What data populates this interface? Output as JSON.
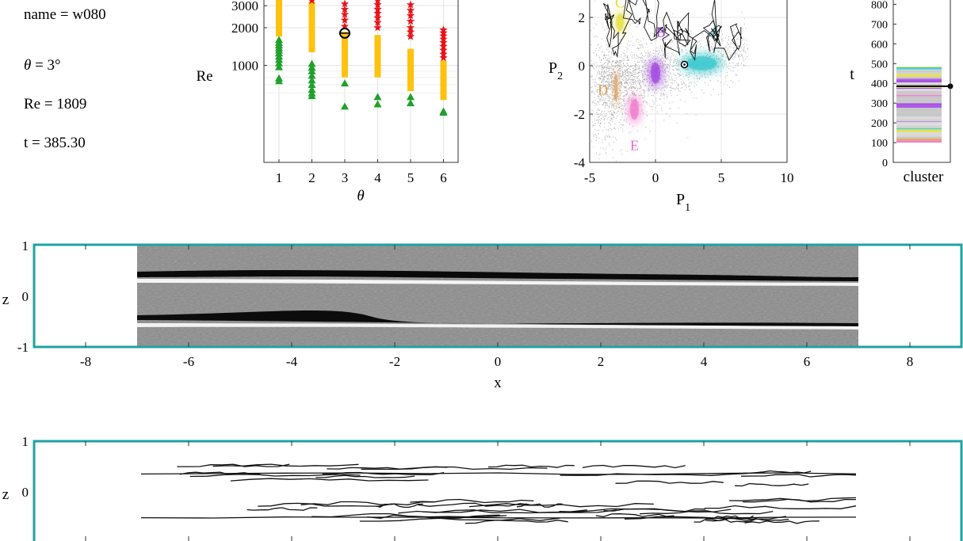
{
  "info": {
    "name": "name = w080",
    "theta_sym": "θ",
    "theta_rest": " = 3°",
    "re": "Re = 1809",
    "t": "t = 385.30"
  },
  "chart_data": [
    {
      "type": "scatter",
      "xlabel": "θ",
      "ylabel": "Re",
      "yscale": "log",
      "xticks": [
        "1",
        "2",
        "3",
        "4",
        "5",
        "6"
      ],
      "yticks": [
        "1000",
        "2000",
        "3000"
      ],
      "xlim": [
        0.5,
        6.5
      ],
      "grid": true,
      "marker_groups": [
        {
          "marker": "triangle",
          "color": "#1fa12a",
          "points": [
            [
              1,
              1600
            ],
            [
              1,
              1520
            ],
            [
              1,
              1450
            ],
            [
              1,
              1380
            ],
            [
              1,
              1320
            ],
            [
              1,
              1250
            ],
            [
              1,
              1180
            ],
            [
              1,
              1110
            ],
            [
              1,
              1040
            ],
            [
              1,
              970
            ],
            [
              1,
              790
            ],
            [
              1,
              750
            ],
            [
              2,
              1030
            ],
            [
              2,
              960
            ],
            [
              2,
              900
            ],
            [
              2,
              830
            ],
            [
              2,
              760
            ],
            [
              2,
              700
            ],
            [
              2,
              640
            ],
            [
              2,
              600
            ],
            [
              2,
              570
            ],
            [
              3,
              720
            ],
            [
              3,
              470
            ],
            [
              4,
              560
            ],
            [
              4,
              490
            ],
            [
              5,
              560
            ],
            [
              5,
              500
            ],
            [
              6,
              430
            ],
            [
              6,
              420
            ]
          ]
        },
        {
          "marker": "square",
          "color": "#ffc20e",
          "points": [
            [
              1,
              1800
            ],
            [
              1,
              1900
            ],
            [
              1,
              2000
            ],
            [
              1,
              2150
            ],
            [
              1,
              2300
            ],
            [
              1,
              2450
            ],
            [
              1,
              2600
            ],
            [
              1,
              2800
            ],
            [
              1,
              3000
            ],
            [
              1,
              3200
            ],
            [
              1,
              3450
            ],
            [
              2,
              1350
            ],
            [
              2,
              1450
            ],
            [
              2,
              1550
            ],
            [
              2,
              1700
            ],
            [
              2,
              1850
            ],
            [
              2,
              2000
            ],
            [
              2,
              2200
            ],
            [
              2,
              2400
            ],
            [
              2,
              2600
            ],
            [
              2,
              2800
            ],
            [
              2,
              3050
            ],
            [
              3,
              850
            ],
            [
              3,
              900
            ],
            [
              3,
              950
            ],
            [
              3,
              1000
            ],
            [
              3,
              1050
            ],
            [
              3,
              1120
            ],
            [
              3,
              1200
            ],
            [
              3,
              1300
            ],
            [
              3,
              1400
            ],
            [
              3,
              1500
            ],
            [
              3,
              1620
            ],
            [
              3,
              1750
            ],
            [
              4,
              850
            ],
            [
              4,
              900
            ],
            [
              4,
              950
            ],
            [
              4,
              1000
            ],
            [
              4,
              1060
            ],
            [
              4,
              1130
            ],
            [
              4,
              1200
            ],
            [
              4,
              1280
            ],
            [
              4,
              1350
            ],
            [
              4,
              1450
            ],
            [
              4,
              1550
            ],
            [
              4,
              1650
            ],
            [
              5,
              660
            ],
            [
              5,
              700
            ],
            [
              5,
              750
            ],
            [
              5,
              800
            ],
            [
              5,
              850
            ],
            [
              5,
              900
            ],
            [
              5,
              950
            ],
            [
              5,
              1000
            ],
            [
              5,
              1060
            ],
            [
              5,
              1130
            ],
            [
              5,
              1200
            ],
            [
              5,
              1280
            ],
            [
              6,
              560
            ],
            [
              6,
              620
            ],
            [
              6,
              680
            ],
            [
              6,
              730
            ],
            [
              6,
              780
            ],
            [
              6,
              830
            ],
            [
              6,
              880
            ],
            [
              6,
              930
            ],
            [
              6,
              980
            ],
            [
              6,
              1030
            ]
          ]
        },
        {
          "marker": "star",
          "color": "#e8141b",
          "points": [
            [
              2,
              3300
            ],
            [
              3,
              2050
            ],
            [
              3,
              2300
            ],
            [
              3,
              2550
            ],
            [
              3,
              2800
            ],
            [
              3,
              3100
            ],
            [
              4,
              2000
            ],
            [
              4,
              2200
            ],
            [
              4,
              2400
            ],
            [
              4,
              2600
            ],
            [
              4,
              2800
            ],
            [
              4,
              3050
            ],
            [
              4,
              3300
            ],
            [
              5,
              1700
            ],
            [
              5,
              1850
            ],
            [
              5,
              2000
            ],
            [
              5,
              2250
            ],
            [
              5,
              2500
            ],
            [
              5,
              2750
            ],
            [
              5,
              3050
            ],
            [
              5,
              3350
            ],
            [
              6,
              1150
            ],
            [
              6,
              1230
            ],
            [
              6,
              1320
            ],
            [
              6,
              1420
            ],
            [
              6,
              1520
            ],
            [
              6,
              1620
            ],
            [
              6,
              1720
            ],
            [
              6,
              1820
            ],
            [
              6,
              1920
            ]
          ]
        }
      ],
      "highlight": {
        "x": 3,
        "y": 1809,
        "marker": "open-circle"
      }
    },
    {
      "type": "scatter",
      "xlabel": "P",
      "xlabel_sub": "1",
      "ylabel": "P",
      "ylabel_sub": "2",
      "xlim": [
        -5,
        10
      ],
      "ylim": [
        -4,
        2.5
      ],
      "xticks": [
        "-5",
        "0",
        "5",
        "10"
      ],
      "yticks": [
        "-4",
        "-2",
        "0",
        "2"
      ],
      "grid": true,
      "clusters": [
        {
          "label": "A",
          "color": "#2ec6cc",
          "center": [
            3.5,
            0.1
          ],
          "spread": [
            1.6,
            0.4
          ],
          "label_at": [
            4.5,
            1.4
          ]
        },
        {
          "label": "B",
          "color": "#9a35e0",
          "center": [
            0,
            -0.3
          ],
          "spread": [
            0.5,
            0.6
          ],
          "label_at": [
            0.4,
            1.4
          ]
        },
        {
          "label": "C",
          "color": "#e3dc2c",
          "center": [
            -2.7,
            1.8
          ],
          "spread": [
            0.4,
            0.5
          ],
          "label_at": [
            -2.7,
            2.6
          ]
        },
        {
          "label": "D",
          "color": "#e09a4e",
          "center": [
            -3.0,
            -0.9
          ],
          "spread": [
            0.18,
            0.8
          ],
          "label_at": [
            -4.0,
            -1.0
          ]
        },
        {
          "label": "E",
          "color": "#f06cc8",
          "center": [
            -1.6,
            -1.8
          ],
          "spread": [
            0.45,
            0.6
          ],
          "label_at": [
            -1.6,
            -3.3
          ]
        }
      ],
      "current_point": [
        2.2,
        0.05
      ]
    },
    {
      "type": "bar",
      "xlabel": "cluster",
      "ylabel": "t",
      "ylim": [
        0,
        850
      ],
      "yticks": [
        "0",
        "100",
        "200",
        "300",
        "400",
        "500",
        "600",
        "700",
        "800"
      ],
      "range": [
        100,
        485
      ],
      "current_t": 385.3
    },
    {
      "type": "heatmap",
      "xlabel": "x",
      "ylabel": "z",
      "xlim": [
        -9,
        9
      ],
      "ylim": [
        -1,
        1
      ],
      "xticks": [
        "-8",
        "-6",
        "-4",
        "-2",
        "0",
        "2",
        "4",
        "6",
        "8"
      ],
      "yticks": [
        "-1",
        "0",
        "1"
      ],
      "image_extent_x": [
        -7,
        7
      ]
    },
    {
      "type": "line",
      "xlabel": "",
      "ylabel": "z",
      "xlim": [
        -9,
        9
      ],
      "ylim": [
        -1,
        1
      ],
      "yticks": [
        "0",
        "1"
      ]
    }
  ]
}
